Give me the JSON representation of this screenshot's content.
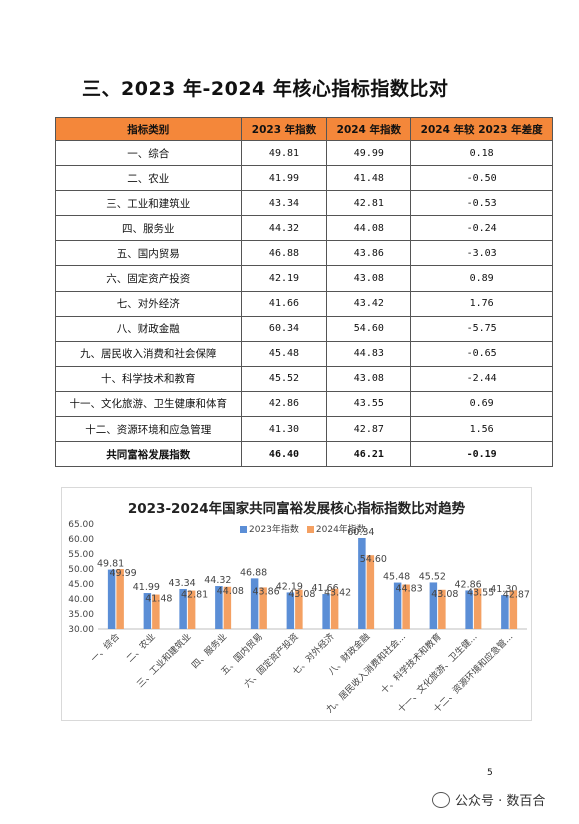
{
  "section_title": "三、2023 年-2024 年核心指标指数比对",
  "table": {
    "headers": [
      "指标类别",
      "2023 年指数",
      "2024 年指数",
      "2024 年较 2023 年差度"
    ],
    "rows": [
      [
        "一、综合",
        "49.81",
        "49.99",
        "0.18"
      ],
      [
        "二、农业",
        "41.99",
        "41.48",
        "-0.50"
      ],
      [
        "三、工业和建筑业",
        "43.34",
        "42.81",
        "-0.53"
      ],
      [
        "四、服务业",
        "44.32",
        "44.08",
        "-0.24"
      ],
      [
        "五、国内贸易",
        "46.88",
        "43.86",
        "-3.03"
      ],
      [
        "六、固定资产投资",
        "42.19",
        "43.08",
        "0.89"
      ],
      [
        "七、对外经济",
        "41.66",
        "43.42",
        "1.76"
      ],
      [
        "八、财政金融",
        "60.34",
        "54.60",
        "-5.75"
      ],
      [
        "九、居民收入消费和社会保障",
        "45.48",
        "44.83",
        "-0.65"
      ],
      [
        "十、科学技术和教育",
        "45.52",
        "43.08",
        "-2.44"
      ],
      [
        "十一、文化旅游、卫生健康和体育",
        "42.86",
        "43.55",
        "0.69"
      ],
      [
        "十二、资源环境和应急管理",
        "41.30",
        "42.87",
        "1.56"
      ]
    ],
    "total": [
      "共同富裕发展指数",
      "46.40",
      "46.21",
      "-0.19"
    ]
  },
  "chart_data": {
    "type": "bar",
    "title": "2023-2024年国家共同富裕发展核心指标指数比对趋势",
    "categories": [
      "一、综合",
      "二、农业",
      "三、工业和建筑业",
      "四、服务业",
      "五、国内贸易",
      "六、固定资产投资",
      "七、对外经济",
      "八、财政金融",
      "九、居民收入消费和社会...",
      "十、科学技术和教育",
      "十一、文化旅游、卫生健...",
      "十二、资源环境和应急管..."
    ],
    "series": [
      {
        "name": "2023年指数",
        "values": [
          49.81,
          41.99,
          43.34,
          44.32,
          46.88,
          42.19,
          41.66,
          60.34,
          45.48,
          45.52,
          42.86,
          41.3
        ],
        "labels": [
          "49.81",
          "41.99",
          "43.34",
          "44.32",
          "46.88",
          "42.19",
          "41.66",
          "60.34",
          "45.48",
          "45.52",
          "42.86",
          "41.30"
        ],
        "color": "#5b8ed6"
      },
      {
        "name": "2024年指数",
        "values": [
          49.99,
          41.48,
          42.81,
          44.08,
          43.86,
          43.08,
          43.42,
          54.6,
          44.83,
          43.08,
          43.55,
          42.87
        ],
        "labels": [
          "49.99",
          "41.48",
          "42.81",
          "44.08",
          "43.86",
          "43.08",
          "43.42",
          "54.60",
          "44.83",
          "43.08",
          "43.55",
          "42.87"
        ],
        "color": "#f4a062"
      }
    ],
    "ylim": [
      30,
      65
    ],
    "yticks": [
      "30.00",
      "35.00",
      "40.00",
      "45.00",
      "50.00",
      "55.00",
      "60.00",
      "65.00"
    ],
    "legend_position": "top-center",
    "grid": false
  },
  "page_number": "5",
  "watermark": "公众号 · 数百合"
}
